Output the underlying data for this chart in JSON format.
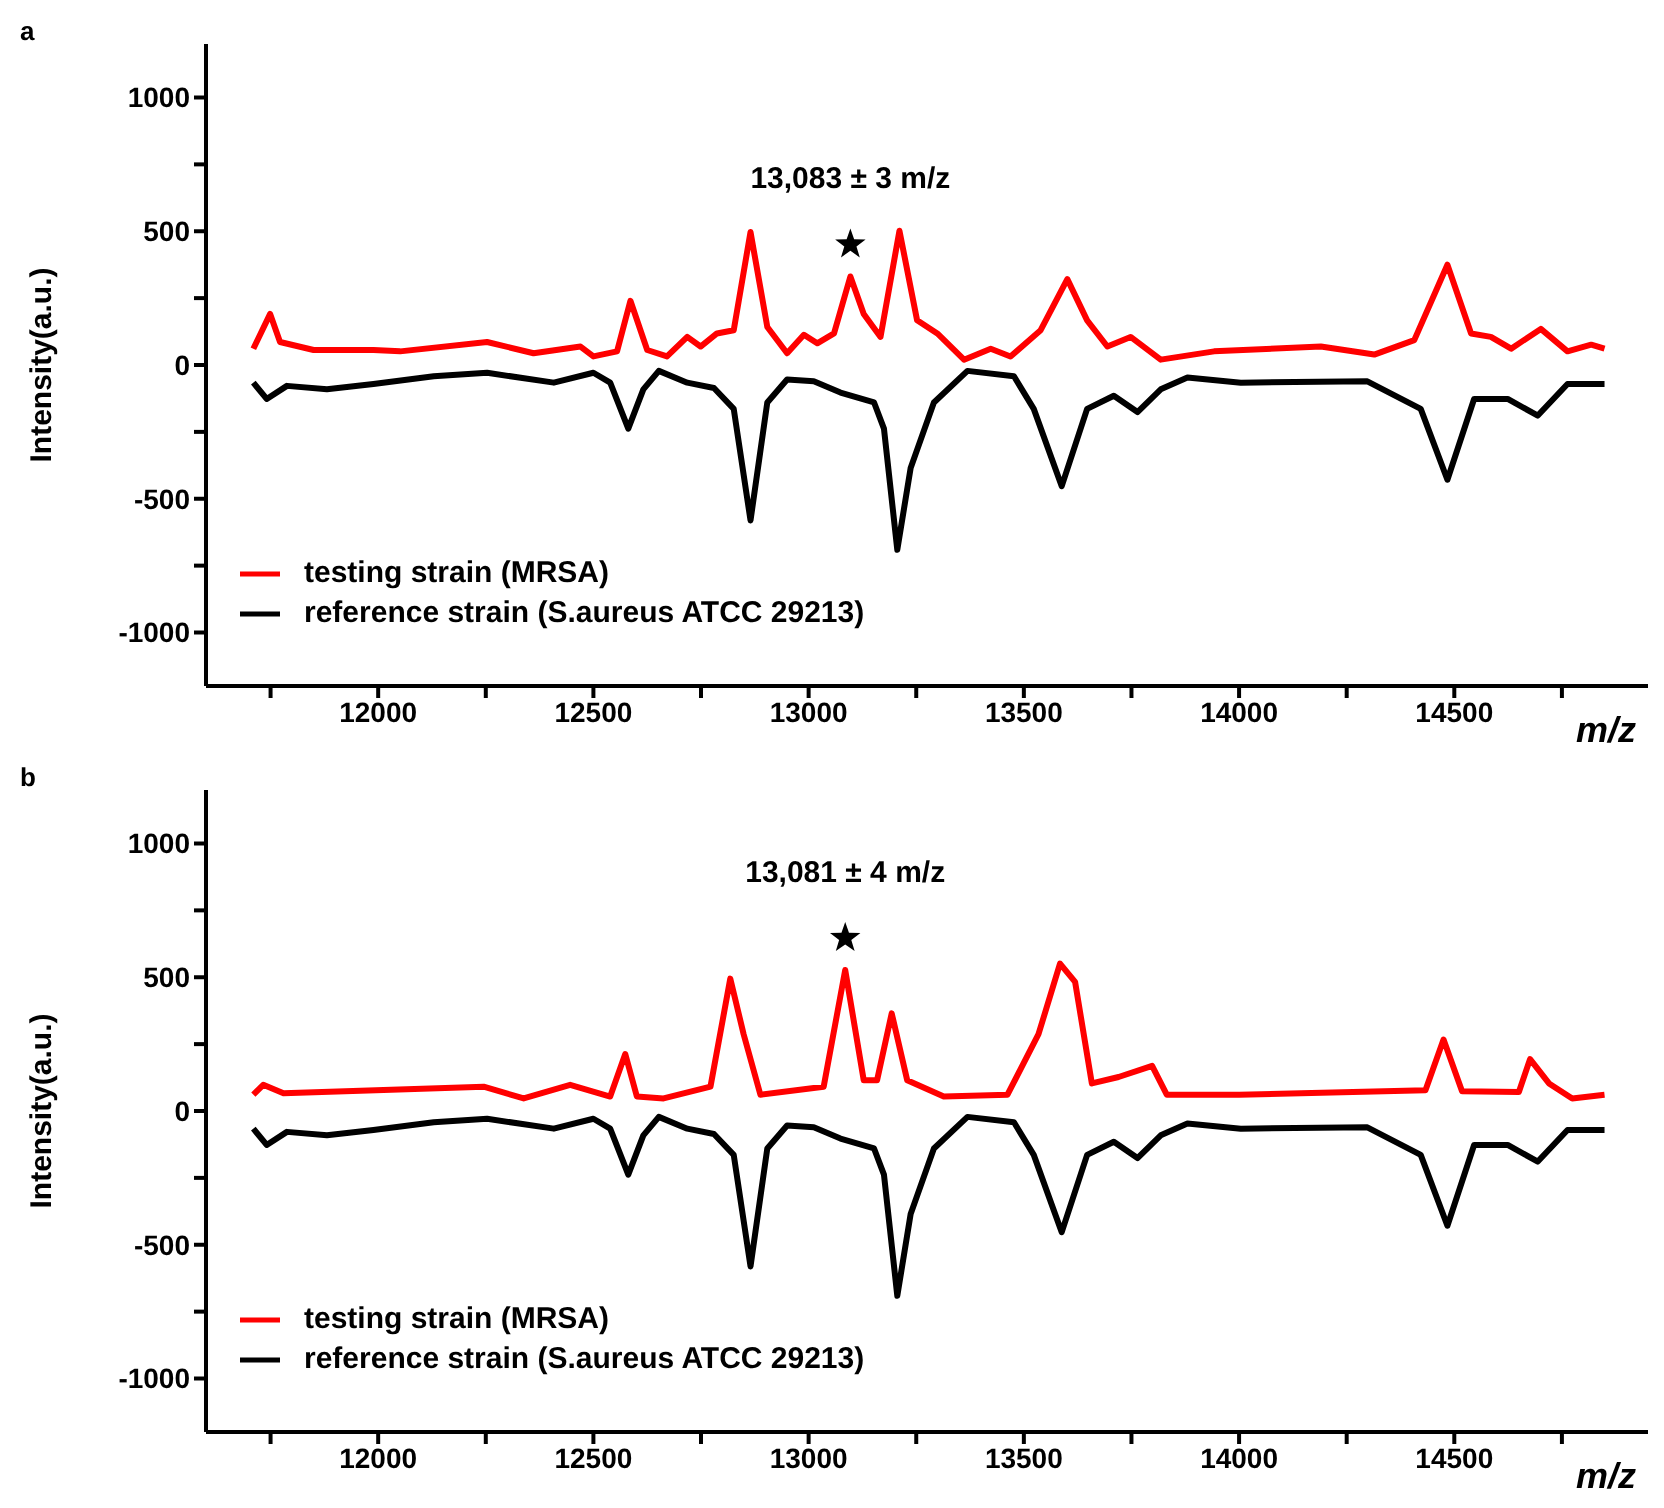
{
  "chart_data": [
    {
      "type": "line",
      "title": "a",
      "xlabel": "m/z",
      "ylabel": "Intensity(a.u.)",
      "xlim": [
        11600,
        14950
      ],
      "ylim": [
        -1200,
        1200
      ],
      "xticks": [
        {
          "value": 11750,
          "label": null
        },
        12000,
        {
          "value": 12250,
          "label": null
        },
        12500,
        {
          "value": 12750,
          "label": null
        },
        13000,
        {
          "value": 13250,
          "label": null
        },
        13500,
        {
          "value": 13750,
          "label": null
        },
        14000,
        {
          "value": 14250,
          "label": null
        },
        14500,
        {
          "value": 14750,
          "label": null
        }
      ],
      "yticks": [
        -1000,
        {
          "value": -750,
          "label": null
        },
        -500,
        {
          "value": -250,
          "label": null
        },
        0,
        {
          "value": 250,
          "label": null
        },
        500,
        {
          "value": 750,
          "label": null
        },
        1000
      ],
      "legend": "bottom left",
      "marker": "none",
      "line_style": "solid",
      "grid": false,
      "annotations": [
        {
          "text": "13,083 ± 3 m/z",
          "x": 13097,
          "y": 331
        }
      ],
      "series": [
        {
          "name": "testing strain (MRSA)",
          "color": "#ff0000",
          "x": [
            11710,
            11749,
            11772,
            11850,
            11989,
            12051,
            12253,
            12361,
            12470,
            12500,
            12555,
            12586,
            12625,
            12671,
            12718,
            12749,
            12787,
            12826,
            12865,
            12904,
            12950,
            12989,
            13020,
            13059,
            13097,
            13128,
            13167,
            13211,
            13252,
            13299,
            13361,
            13423,
            13469,
            13539,
            13601,
            13647,
            13694,
            13748,
            13818,
            13942,
            14190,
            14314,
            14407,
            14484,
            14539,
            14585,
            14632,
            14701,
            14763,
            14818,
            14849
          ],
          "values": [
            61,
            191,
            86,
            56,
            56,
            51,
            86,
            44,
            69,
            32,
            51,
            240,
            56,
            32,
            105,
            69,
            118,
            130,
            497,
            142,
            44,
            113,
            81,
            118,
            331,
            191,
            105,
            502,
            167,
            118,
            20,
            61,
            32,
            130,
            321,
            167,
            69,
            105,
            20,
            51,
            69,
            39,
            93,
            375,
            118,
            105,
            61,
            135,
            51,
            76,
            61
          ]
        },
        {
          "name": "reference strain (S.aureus ATCC 29213)",
          "color": "#000000",
          "x": [
            11710,
            11741,
            11788,
            11881,
            11989,
            12129,
            12253,
            12408,
            12500,
            12539,
            12581,
            12616,
            12652,
            12718,
            12780,
            12826,
            12865,
            12904,
            12950,
            13012,
            13074,
            13152,
            13175,
            13206,
            13237,
            13291,
            13369,
            13477,
            13523,
            13588,
            13647,
            13709,
            13764,
            13818,
            13880,
            14004,
            14298,
            14422,
            14484,
            14546,
            14624,
            14694,
            14763,
            14849
          ],
          "values": [
            -66,
            -127,
            -78,
            -91,
            -71,
            -42,
            -29,
            -66,
            -29,
            -66,
            -238,
            -91,
            -22,
            -66,
            -86,
            -164,
            -581,
            -140,
            -54,
            -61,
            -103,
            -140,
            -238,
            -691,
            -385,
            -140,
            -22,
            -42,
            -164,
            -453,
            -164,
            -115,
            -176,
            -91,
            -47,
            -66,
            -61,
            -164,
            -429,
            -127,
            -127,
            -189,
            -71,
            -71
          ]
        }
      ]
    },
    {
      "type": "line",
      "title": "b",
      "xlabel": "m/z",
      "ylabel": "Intensity(a.u.)",
      "xlim": [
        11600,
        14950
      ],
      "ylim": [
        -1200,
        1200
      ],
      "xticks": [
        {
          "value": 11750,
          "label": null
        },
        12000,
        {
          "value": 12250,
          "label": null
        },
        12500,
        {
          "value": 12750,
          "label": null
        },
        13000,
        {
          "value": 13250,
          "label": null
        },
        13500,
        {
          "value": 13750,
          "label": null
        },
        14000,
        {
          "value": 14250,
          "label": null
        },
        14500,
        {
          "value": 14750,
          "label": null
        }
      ],
      "yticks": [
        -1000,
        {
          "value": -750,
          "label": null
        },
        -500,
        {
          "value": -250,
          "label": null
        },
        0,
        {
          "value": 250,
          "label": null
        },
        500,
        {
          "value": 750,
          "label": null
        },
        1000
      ],
      "legend": "bottom left",
      "marker": "none",
      "line_style": "solid",
      "grid": false,
      "annotations": [
        {
          "text": "13,081 ± 4 m/z",
          "x": 13085,
          "y": 527
        }
      ],
      "series": [
        {
          "name": "testing strain (MRSA)",
          "color": "#ff0000",
          "x": [
            11710,
            11733,
            11780,
            12245,
            12338,
            12446,
            12539,
            12574,
            12601,
            12663,
            12772,
            12818,
            12849,
            12888,
            13035,
            13085,
            13128,
            13159,
            13193,
            13229,
            13314,
            13462,
            13534,
            13584,
            13619,
            13658,
            13720,
            13798,
            13832,
            14000,
            14433,
            14475,
            14518,
            14650,
            14676,
            14720,
            14774,
            14849
          ],
          "values": [
            61,
            98,
            66,
            91,
            47,
            98,
            54,
            213,
            54,
            47,
            91,
            495,
            287,
            61,
            91,
            527,
            115,
            115,
            365,
            115,
            54,
            61,
            287,
            551,
            483,
            103,
            127,
            169,
            61,
            61,
            78,
            267,
            74,
            71,
            194,
            103,
            47,
            61
          ]
        },
        {
          "name": "reference strain (S.aureus ATCC 29213)",
          "color": "#000000",
          "x": [
            11710,
            11741,
            11788,
            11881,
            11989,
            12129,
            12253,
            12408,
            12500,
            12539,
            12581,
            12616,
            12652,
            12718,
            12780,
            12826,
            12865,
            12904,
            12950,
            13012,
            13074,
            13152,
            13175,
            13206,
            13237,
            13291,
            13369,
            13477,
            13523,
            13588,
            13647,
            13709,
            13764,
            13818,
            13880,
            14004,
            14298,
            14422,
            14484,
            14546,
            14624,
            14694,
            14763,
            14849
          ],
          "values": [
            -66,
            -127,
            -78,
            -91,
            -71,
            -42,
            -29,
            -66,
            -29,
            -66,
            -238,
            -91,
            -22,
            -66,
            -86,
            -164,
            -581,
            -140,
            -54,
            -61,
            -103,
            -140,
            -238,
            -691,
            -385,
            -140,
            -22,
            -42,
            -164,
            -453,
            -164,
            -115,
            -176,
            -91,
            -47,
            -66,
            -61,
            -164,
            -429,
            -127,
            -127,
            -189,
            -71,
            -71
          ]
        }
      ]
    }
  ]
}
